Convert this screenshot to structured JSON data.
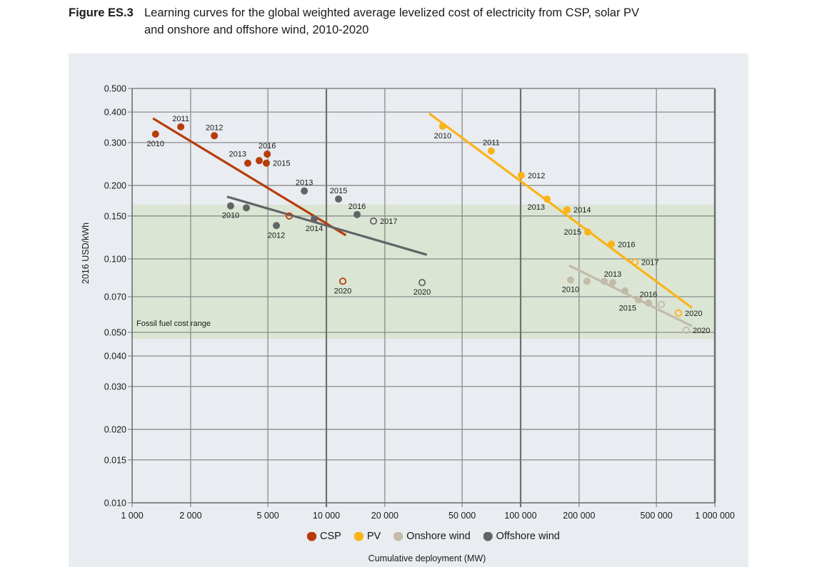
{
  "figure": {
    "number": "Figure ES.3",
    "title_line1": "Learning curves for the global weighted average levelized cost of electricity from CSP, solar PV",
    "title_line2": "and onshore and offshore wind, 2010-2020"
  },
  "chart_data": {
    "type": "scatter",
    "title": "Learning curves for the global weighted average levelized cost of electricity from CSP, solar PV and onshore and offshore wind, 2010-2020",
    "xlabel": "Cumulative deployment (MW)",
    "ylabel": "2016 USD/kWh",
    "xscale": "log",
    "yscale": "log",
    "xlim": [
      1000,
      1000000
    ],
    "ylim": [
      0.01,
      0.5
    ],
    "grid": true,
    "legend_position": "bottom-center",
    "x_ticks": [
      {
        "value": 1000,
        "label": "1 000"
      },
      {
        "value": 2000,
        "label": "2 000"
      },
      {
        "value": 5000,
        "label": "5 000"
      },
      {
        "value": 10000,
        "label": "10 000"
      },
      {
        "value": 20000,
        "label": "20 000"
      },
      {
        "value": 50000,
        "label": "50 000"
      },
      {
        "value": 100000,
        "label": "100 000"
      },
      {
        "value": 200000,
        "label": "200 000"
      },
      {
        "value": 500000,
        "label": "500 000"
      },
      {
        "value": 1000000,
        "label": "1 000 000"
      }
    ],
    "y_ticks": [
      {
        "value": 0.5,
        "label": "0.500"
      },
      {
        "value": 0.4,
        "label": "0.400"
      },
      {
        "value": 0.3,
        "label": "0.300"
      },
      {
        "value": 0.2,
        "label": "0.200"
      },
      {
        "value": 0.15,
        "label": "0.150"
      },
      {
        "value": 0.1,
        "label": "0.100"
      },
      {
        "value": 0.07,
        "label": "0.070"
      },
      {
        "value": 0.05,
        "label": "0.050"
      },
      {
        "value": 0.04,
        "label": "0.040"
      },
      {
        "value": 0.03,
        "label": "0.030"
      },
      {
        "value": 0.02,
        "label": "0.020"
      },
      {
        "value": 0.015,
        "label": "0.015"
      },
      {
        "value": 0.01,
        "label": "0.010"
      }
    ],
    "bands": [
      {
        "name": "fossil-fuel-cost-range",
        "label": "Fossil fuel cost range",
        "y_min": 0.047,
        "y_max": 0.167,
        "color": "#dbe5d4"
      }
    ],
    "series": [
      {
        "name": "CSP",
        "key": "csp",
        "color": "#b83c0a",
        "trend": [
          [
            1280,
            0.377
          ],
          [
            12600,
            0.125
          ]
        ],
        "points": [
          {
            "year": "2010",
            "x": 1320,
            "y": 0.325,
            "projected": false,
            "label": "2010",
            "label_pos": "below"
          },
          {
            "year": "2011",
            "x": 1780,
            "y": 0.348,
            "projected": false,
            "label": "2011",
            "label_pos": "above"
          },
          {
            "year": "2012",
            "x": 2650,
            "y": 0.32,
            "projected": false,
            "label": "2012",
            "label_pos": "above"
          },
          {
            "year": "2013",
            "x": 3940,
            "y": 0.247,
            "projected": false,
            "label": "2013",
            "label_pos": "above-left"
          },
          {
            "year": "2014",
            "x": 4510,
            "y": 0.253,
            "projected": false,
            "label": "",
            "label_pos": "none"
          },
          {
            "year": "2015",
            "x": 4910,
            "y": 0.247,
            "projected": false,
            "label": "2015",
            "label_pos": "right"
          },
          {
            "year": "2016",
            "x": 4960,
            "y": 0.269,
            "projected": false,
            "label": "2016",
            "label_pos": "above"
          },
          {
            "year": "2017",
            "x": 6440,
            "y": 0.15,
            "projected": true,
            "label": "",
            "label_pos": "none"
          },
          {
            "year": "2020",
            "x": 12150,
            "y": 0.081,
            "projected": true,
            "label": "2020",
            "label_pos": "below"
          }
        ]
      },
      {
        "name": "PV",
        "key": "pv",
        "color": "#fbb316",
        "trend": [
          [
            33800,
            0.395
          ],
          [
            763000,
            0.063
          ]
        ],
        "points": [
          {
            "year": "2010",
            "x": 39700,
            "y": 0.35,
            "projected": false,
            "label": "2010",
            "label_pos": "below"
          },
          {
            "year": "2011",
            "x": 70600,
            "y": 0.277,
            "projected": false,
            "label": "2011",
            "label_pos": "above"
          },
          {
            "year": "2012",
            "x": 100800,
            "y": 0.22,
            "projected": false,
            "label": "2012",
            "label_pos": "right"
          },
          {
            "year": "2013",
            "x": 136800,
            "y": 0.176,
            "projected": false,
            "label": "2013",
            "label_pos": "below-left"
          },
          {
            "year": "2014",
            "x": 173400,
            "y": 0.159,
            "projected": false,
            "label": "2014",
            "label_pos": "right"
          },
          {
            "year": "2015",
            "x": 221600,
            "y": 0.129,
            "projected": false,
            "label": "2015",
            "label_pos": "left"
          },
          {
            "year": "2016",
            "x": 293200,
            "y": 0.115,
            "projected": false,
            "label": "2016",
            "label_pos": "right"
          },
          {
            "year": "2017",
            "x": 387400,
            "y": 0.097,
            "projected": true,
            "label": "2017",
            "label_pos": "right"
          },
          {
            "year": "2020",
            "x": 649700,
            "y": 0.06,
            "projected": true,
            "label": "2020",
            "label_pos": "right"
          }
        ]
      },
      {
        "name": "Onshore wind",
        "key": "onshore",
        "color": "#c2bba9",
        "trend": [
          [
            177600,
            0.094
          ],
          [
            763000,
            0.053
          ]
        ],
        "points": [
          {
            "year": "2010",
            "x": 180800,
            "y": 0.082,
            "projected": false,
            "label": "2010",
            "label_pos": "below"
          },
          {
            "year": "2011",
            "x": 219600,
            "y": 0.081,
            "projected": false,
            "label": "",
            "label_pos": "none"
          },
          {
            "year": "2012",
            "x": 269200,
            "y": 0.081,
            "projected": false,
            "label": "",
            "label_pos": "none"
          },
          {
            "year": "2013",
            "x": 297900,
            "y": 0.08,
            "projected": false,
            "label": "2013",
            "label_pos": "above"
          },
          {
            "year": "2014",
            "x": 344000,
            "y": 0.074,
            "projected": false,
            "label": "",
            "label_pos": "none"
          },
          {
            "year": "2015",
            "x": 404400,
            "y": 0.068,
            "projected": false,
            "label": "2015",
            "label_pos": "below-left"
          },
          {
            "year": "2016",
            "x": 455100,
            "y": 0.066,
            "projected": false,
            "label": "2016",
            "label_pos": "above"
          },
          {
            "year": "2017",
            "x": 529900,
            "y": 0.065,
            "projected": true,
            "label": "",
            "label_pos": "none"
          },
          {
            "year": "2020",
            "x": 712400,
            "y": 0.051,
            "projected": true,
            "label": "2020",
            "label_pos": "right"
          }
        ]
      },
      {
        "name": "Offshore wind",
        "key": "offshore",
        "color": "#636466",
        "trend": [
          [
            3080,
            0.18
          ],
          [
            32900,
            0.104
          ]
        ],
        "points": [
          {
            "year": "2010",
            "x": 3215,
            "y": 0.165,
            "projected": false,
            "label": "2010",
            "label_pos": "below"
          },
          {
            "year": "2011",
            "x": 3874,
            "y": 0.162,
            "projected": false,
            "label": "",
            "label_pos": "none"
          },
          {
            "year": "2012",
            "x": 5530,
            "y": 0.137,
            "projected": false,
            "label": "2012",
            "label_pos": "below"
          },
          {
            "year": "2013",
            "x": 7700,
            "y": 0.19,
            "projected": false,
            "label": "2013",
            "label_pos": "above"
          },
          {
            "year": "2014",
            "x": 8660,
            "y": 0.146,
            "projected": false,
            "label": "2014",
            "label_pos": "below"
          },
          {
            "year": "2015",
            "x": 11550,
            "y": 0.176,
            "projected": false,
            "label": "2015",
            "label_pos": "above"
          },
          {
            "year": "2016",
            "x": 14390,
            "y": 0.152,
            "projected": false,
            "label": "2016",
            "label_pos": "above"
          },
          {
            "year": "2017",
            "x": 17480,
            "y": 0.143,
            "projected": true,
            "label": "2017",
            "label_pos": "right"
          },
          {
            "year": "2020",
            "x": 31100,
            "y": 0.08,
            "projected": true,
            "label": "2020",
            "label_pos": "below"
          }
        ]
      }
    ]
  },
  "legend": [
    {
      "key": "csp",
      "label": "CSP",
      "color": "#b83c0a"
    },
    {
      "key": "pv",
      "label": "PV",
      "color": "#fbb316"
    },
    {
      "key": "onshore",
      "label": "Onshore wind",
      "color": "#c2bba9"
    },
    {
      "key": "offshore",
      "label": "Offshore wind",
      "color": "#636466"
    }
  ]
}
